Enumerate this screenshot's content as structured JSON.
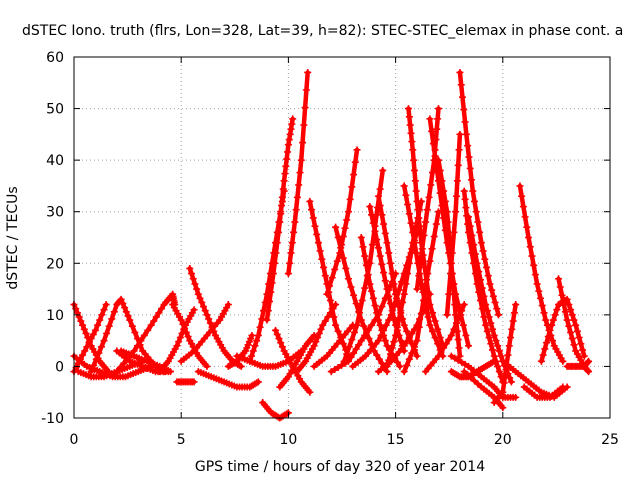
{
  "chart_data": {
    "type": "scatter",
    "title": "dSTEC Iono. truth (flrs, Lon=328, Lat=39, h=82): STEC-STEC_elemax in phase cont. a",
    "xlabel": "GPS time / hours of day 320 of year 2014",
    "ylabel": "dSTEC  / TECUs",
    "xlim": [
      0,
      25
    ],
    "ylim": [
      -10,
      60
    ],
    "xticks": [
      0,
      5,
      10,
      15,
      20,
      25
    ],
    "yticks": [
      -10,
      0,
      10,
      20,
      30,
      40,
      50,
      60
    ],
    "grid": true,
    "marker": "+",
    "color": "#ff0000",
    "series": [
      {
        "x": [
          0.0,
          0.4,
          0.8,
          1.2,
          1.6
        ],
        "y": [
          12,
          8,
          4,
          1,
          -1
        ]
      },
      {
        "x": [
          0.0,
          0.5,
          1.0,
          1.5
        ],
        "y": [
          -1,
          3,
          7,
          12
        ]
      },
      {
        "x": [
          0.2,
          0.8,
          1.4,
          2.0,
          2.6,
          3.2
        ],
        "y": [
          -1,
          -2,
          -2,
          -1,
          0,
          1
        ]
      },
      {
        "x": [
          0.0,
          0.6,
          1.2,
          1.8,
          2.4,
          3.0,
          3.6
        ],
        "y": [
          2,
          0,
          -1,
          -2,
          -2,
          -1,
          0
        ]
      },
      {
        "x": [
          0.8,
          1.4,
          2.0,
          2.2,
          2.6,
          3.2,
          3.8,
          4.2
        ],
        "y": [
          -1,
          5,
          12,
          13,
          9,
          3,
          0,
          -1
        ]
      },
      {
        "x": [
          2.0,
          2.6,
          3.2,
          3.8,
          4.4
        ],
        "y": [
          3,
          1,
          0,
          -1,
          -1
        ]
      },
      {
        "x": [
          2.0,
          2.8,
          3.6,
          4.2,
          4.6,
          4.7
        ],
        "y": [
          -1,
          3,
          8,
          12,
          14,
          12
        ]
      },
      {
        "x": [
          2.2,
          2.8,
          3.4,
          4.0,
          4.5
        ],
        "y": [
          3,
          2,
          1,
          0,
          -1
        ]
      },
      {
        "x": [
          4.6,
          5.0,
          5.4,
          5.8,
          6.2
        ],
        "y": [
          12,
          9,
          5,
          2,
          0
        ]
      },
      {
        "x": [
          4.0,
          4.4,
          4.8,
          5.2,
          5.6
        ],
        "y": [
          -1,
          1,
          4,
          8,
          11
        ]
      },
      {
        "x": [
          4.8,
          5.2,
          5.6
        ],
        "y": [
          -3,
          -3,
          -3
        ]
      },
      {
        "x": [
          5.0,
          5.6,
          6.2,
          6.8,
          7.2
        ],
        "y": [
          1,
          3,
          6,
          9,
          12
        ]
      },
      {
        "x": [
          5.4,
          5.8,
          6.2,
          6.6,
          7.0,
          7.4,
          7.8
        ],
        "y": [
          19,
          14,
          10,
          6,
          3,
          1,
          0
        ]
      },
      {
        "x": [
          5.8,
          6.4,
          7.0,
          7.6,
          8.2,
          8.6
        ],
        "y": [
          -1,
          -2,
          -3,
          -4,
          -4,
          -3
        ]
      },
      {
        "x": [
          7.6,
          8.2,
          8.8,
          9.4,
          10.0,
          10.6
        ],
        "y": [
          2,
          1,
          0,
          0,
          1,
          3
        ]
      },
      {
        "x": [
          7.2,
          7.6,
          8.0,
          8.3
        ],
        "y": [
          0,
          1,
          3,
          6
        ]
      },
      {
        "x": [
          8.2,
          8.6,
          9.0,
          9.4,
          9.8
        ],
        "y": [
          1,
          6,
          14,
          24,
          34
        ]
      },
      {
        "x": [
          8.8,
          9.2,
          9.6,
          10.0
        ],
        "y": [
          -7,
          -9,
          -10,
          -9
        ]
      },
      {
        "x": [
          9.0,
          9.3,
          9.6,
          9.8,
          10.0,
          10.2
        ],
        "y": [
          9,
          18,
          28,
          36,
          43,
          48
        ]
      },
      {
        "x": [
          9.4,
          9.8,
          10.2,
          10.6,
          11.0
        ],
        "y": [
          7,
          3,
          0,
          -3,
          -5
        ]
      },
      {
        "x": [
          9.6,
          10.0,
          10.4,
          10.8,
          11.2
        ],
        "y": [
          -4,
          -2,
          1,
          4,
          6
        ]
      },
      {
        "x": [
          10.0,
          10.3,
          10.6,
          10.9
        ],
        "y": [
          18,
          28,
          40,
          57
        ]
      },
      {
        "x": [
          10.4,
          10.8,
          11.2,
          11.6,
          12.2
        ],
        "y": [
          -1,
          1,
          4,
          8,
          12
        ]
      },
      {
        "x": [
          11.0,
          11.4,
          11.8,
          12.2,
          12.8
        ],
        "y": [
          32,
          24,
          16,
          8,
          2
        ]
      },
      {
        "x": [
          11.2,
          11.8,
          12.4,
          13.0
        ],
        "y": [
          0,
          2,
          5,
          8
        ]
      },
      {
        "x": [
          11.8,
          12.4,
          12.8,
          13.2
        ],
        "y": [
          14,
          22,
          30,
          42
        ]
      },
      {
        "x": [
          12.2,
          12.8,
          13.4,
          14.0,
          14.6
        ],
        "y": [
          27,
          17,
          9,
          3,
          -1
        ]
      },
      {
        "x": [
          12.0,
          12.8,
          13.4,
          14.2,
          15.0
        ],
        "y": [
          -1,
          1,
          5,
          10,
          18
        ]
      },
      {
        "x": [
          12.6,
          13.2,
          13.8,
          14.4
        ],
        "y": [
          1,
          8,
          20,
          38
        ]
      },
      {
        "x": [
          13.0,
          13.6,
          14.2,
          14.8,
          15.4,
          16.0
        ],
        "y": [
          0,
          2,
          5,
          10,
          18,
          26
        ]
      },
      {
        "x": [
          13.4,
          13.8,
          14.2,
          14.6,
          15.2
        ],
        "y": [
          25,
          16,
          9,
          4,
          0
        ]
      },
      {
        "x": [
          13.8,
          14.2,
          14.6,
          15.0,
          15.4
        ],
        "y": [
          31,
          23,
          15,
          8,
          3
        ]
      },
      {
        "x": [
          14.2,
          14.6,
          15.0,
          15.4,
          16.0
        ],
        "y": [
          33,
          24,
          14,
          8,
          2
        ]
      },
      {
        "x": [
          14.2,
          14.8,
          15.4,
          16.0,
          16.6
        ],
        "y": [
          -1,
          1,
          4,
          8,
          14
        ]
      },
      {
        "x": [
          14.6,
          15.0,
          15.4,
          15.8,
          16.2
        ],
        "y": [
          0,
          6,
          14,
          24,
          32
        ]
      },
      {
        "x": [
          15.4,
          15.8,
          16.2,
          16.6,
          17.2
        ],
        "y": [
          35,
          26,
          16,
          8,
          2
        ]
      },
      {
        "x": [
          15.6,
          15.8,
          16.0,
          16.2,
          16.6,
          17.2
        ],
        "y": [
          50,
          42,
          32,
          24,
          12,
          4
        ]
      },
      {
        "x": [
          15.4,
          16.0,
          16.5,
          17.0
        ],
        "y": [
          -1,
          5,
          18,
          30
        ]
      },
      {
        "x": [
          16.0,
          16.4,
          16.8,
          17.0
        ],
        "y": [
          15,
          28,
          40,
          50
        ]
      },
      {
        "x": [
          16.6,
          17.0,
          17.4,
          17.8,
          18.4
        ],
        "y": [
          48,
          36,
          24,
          14,
          4
        ]
      },
      {
        "x": [
          16.4,
          17.0,
          17.6,
          18.2
        ],
        "y": [
          -1,
          2,
          6,
          12
        ]
      },
      {
        "x": [
          17.0,
          17.4,
          17.6,
          17.8,
          18.0
        ],
        "y": [
          40,
          30,
          20,
          10,
          2
        ]
      },
      {
        "x": [
          17.4,
          17.8,
          18.0
        ],
        "y": [
          10,
          30,
          45
        ]
      },
      {
        "x": [
          17.6,
          18.0,
          18.4,
          18.8,
          19.2,
          19.6
        ],
        "y": [
          -1,
          -2,
          -2,
          -1,
          0,
          1
        ]
      },
      {
        "x": [
          18.0,
          18.3,
          18.6,
          19.0,
          19.4,
          19.8
        ],
        "y": [
          57,
          45,
          34,
          24,
          16,
          10
        ]
      },
      {
        "x": [
          18.2,
          18.4,
          18.8,
          19.2,
          19.6,
          20.0
        ],
        "y": [
          34,
          26,
          16,
          8,
          2,
          -3
        ]
      },
      {
        "x": [
          18.4,
          18.8,
          19.2,
          19.6,
          20.0,
          20.4
        ],
        "y": [
          29,
          20,
          12,
          6,
          1,
          -3
        ]
      },
      {
        "x": [
          17.6,
          18.4,
          19.0,
          19.6,
          20.0,
          20.6
        ],
        "y": [
          2,
          0,
          -2,
          -4,
          -6,
          -6
        ]
      },
      {
        "x": [
          18.2,
          19.0,
          19.6,
          20.0
        ],
        "y": [
          -1,
          -4,
          -6,
          -8
        ]
      },
      {
        "x": [
          19.6,
          20.0,
          20.3,
          20.6
        ],
        "y": [
          -7,
          -5,
          4,
          12
        ]
      },
      {
        "x": [
          20.0,
          20.6,
          21.2,
          21.8,
          22.4,
          23.0
        ],
        "y": [
          1,
          -1,
          -3,
          -5,
          -6,
          -4
        ]
      },
      {
        "x": [
          20.8,
          21.2,
          21.6,
          22.0,
          22.4,
          22.8
        ],
        "y": [
          35,
          25,
          16,
          9,
          4,
          1
        ]
      },
      {
        "x": [
          21.0,
          21.6,
          22.2,
          22.8
        ],
        "y": [
          -4,
          -6,
          -6,
          -4
        ]
      },
      {
        "x": [
          21.8,
          22.2,
          22.6,
          23.0,
          23.4,
          23.8
        ],
        "y": [
          1,
          7,
          12,
          13,
          8,
          2
        ]
      },
      {
        "x": [
          22.6,
          23.0,
          23.4,
          23.8,
          24.0
        ],
        "y": [
          17,
          9,
          3,
          0,
          -1
        ]
      },
      {
        "x": [
          23.0,
          23.4,
          23.8,
          24.0
        ],
        "y": [
          0,
          0,
          0,
          1
        ]
      }
    ]
  }
}
